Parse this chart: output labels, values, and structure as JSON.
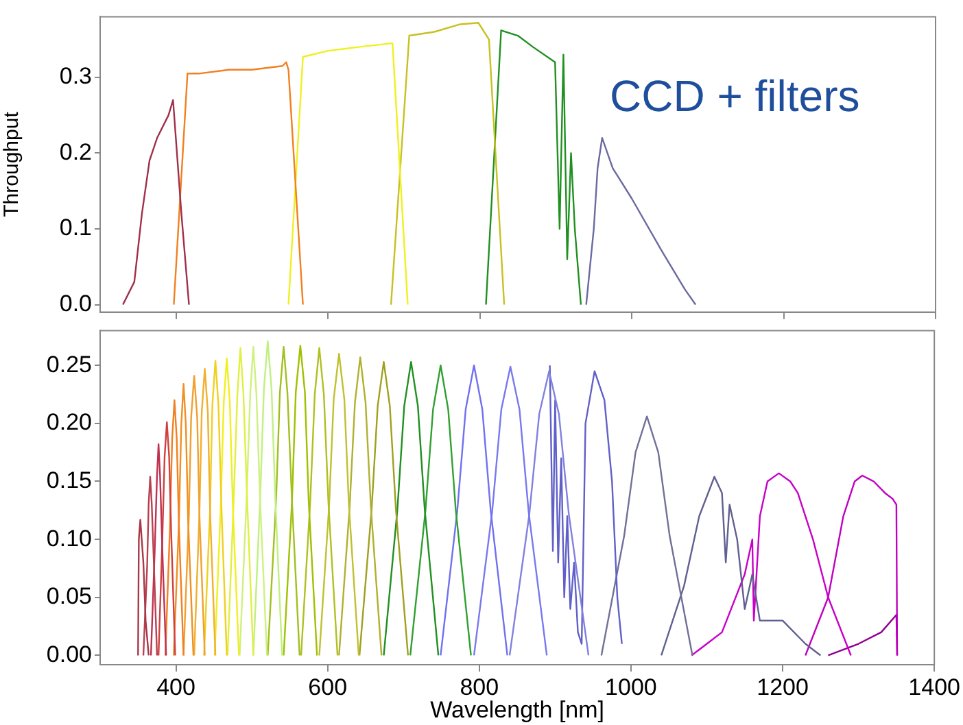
{
  "chart_data": [
    {
      "type": "line",
      "ylabel": "Throughput",
      "annotations": [
        "CCD + filters"
      ],
      "xlim": [
        300,
        1400
      ],
      "ylim": [
        -0.01,
        0.38
      ],
      "xticks": [
        400,
        600,
        800,
        1000,
        1200,
        1400
      ],
      "yticks": [
        {
          "value": 0,
          "label": "0.0"
        },
        {
          "value": 0.1,
          "label": "0.1"
        },
        {
          "value": 0.2,
          "label": "0.2"
        },
        {
          "value": 0.3,
          "label": "0.3"
        }
      ],
      "tick_labels": "y",
      "grid": false,
      "marker": "none",
      "series": [
        {
          "color": "#a0304a",
          "x": [
            330,
            345,
            355,
            365,
            375,
            390,
            396,
            407,
            417
          ],
          "values": [
            0,
            0.03,
            0.12,
            0.19,
            0.22,
            0.25,
            0.27,
            0.12,
            0
          ]
        },
        {
          "color": "#f08020",
          "x": [
            397,
            415,
            430,
            470,
            500,
            540,
            545,
            548,
            567
          ],
          "values": [
            0,
            0.305,
            0.305,
            0.31,
            0.31,
            0.315,
            0.32,
            0.31,
            0
          ]
        },
        {
          "color": "#f0f020",
          "x": [
            548,
            567,
            600,
            640,
            685,
            705
          ],
          "values": [
            0,
            0.327,
            0.335,
            0.34,
            0.345,
            0
          ]
        },
        {
          "color": "#c8c020",
          "x": [
            683,
            707,
            740,
            774,
            798,
            812,
            832
          ],
          "values": [
            0,
            0.355,
            0.36,
            0.37,
            0.372,
            0.35,
            0
          ]
        },
        {
          "color": "#209020",
          "x": [
            808,
            828,
            850,
            870,
            899,
            905,
            910,
            915,
            920,
            925,
            933
          ],
          "values": [
            0,
            0.362,
            0.355,
            0.34,
            0.32,
            0.1,
            0.33,
            0.06,
            0.2,
            0.1,
            0
          ]
        },
        {
          "color": "#6a6aa0",
          "x": [
            940,
            950,
            955,
            961,
            975,
            1000,
            1040,
            1070,
            1084
          ],
          "values": [
            0,
            0.1,
            0.18,
            0.22,
            0.18,
            0.14,
            0.07,
            0.02,
            0
          ]
        }
      ]
    },
    {
      "type": "line",
      "xlabel": "Wavelength [nm]",
      "xlim": [
        300,
        1400
      ],
      "ylim": [
        -0.008,
        0.28
      ],
      "xticks": [
        400,
        600,
        800,
        1000,
        1200,
        1400
      ],
      "yticks": [
        {
          "value": 0,
          "label": "0.00"
        },
        {
          "value": 0.05,
          "label": "0.05"
        },
        {
          "value": 0.1,
          "label": "0.10"
        },
        {
          "value": 0.15,
          "label": "0.15"
        },
        {
          "value": 0.2,
          "label": "0.20"
        },
        {
          "value": 0.25,
          "label": "0.25"
        }
      ],
      "grid": false,
      "marker": "none",
      "series": [
        {
          "color": "#a83848",
          "x": [
            350,
            351,
            353,
            357,
            360,
            364
          ],
          "values": [
            0,
            0.1,
            0.117,
            0.08,
            0.03,
            0
          ]
        },
        {
          "color": "#b84050",
          "x": [
            357,
            362,
            364,
            366,
            368,
            371,
            375
          ],
          "values": [
            0,
            0.077,
            0.131,
            0.154,
            0.131,
            0.077,
            0
          ]
        },
        {
          "color": "#c03050",
          "x": [
            367,
            372,
            375,
            377,
            379,
            382,
            387
          ],
          "values": [
            0,
            0.091,
            0.155,
            0.182,
            0.155,
            0.091,
            0
          ]
        },
        {
          "color": "#d04040",
          "x": [
            377,
            382,
            385,
            388,
            391,
            394,
            399
          ],
          "values": [
            0,
            0.1,
            0.171,
            0.201,
            0.171,
            0.1,
            0
          ]
        },
        {
          "color": "#f08020",
          "x": [
            386,
            392,
            395,
            398,
            401,
            404,
            410
          ],
          "values": [
            0,
            0.11,
            0.187,
            0.22,
            0.187,
            0.11,
            0
          ]
        },
        {
          "color": "#f09020",
          "x": [
            397,
            404,
            407,
            410,
            413,
            416,
            423
          ],
          "values": [
            0,
            0.117,
            0.199,
            0.234,
            0.199,
            0.117,
            0
          ]
        },
        {
          "color": "#f0a030",
          "x": [
            410,
            417,
            420,
            424,
            428,
            431,
            438
          ],
          "values": [
            0,
            0.12,
            0.205,
            0.241,
            0.205,
            0.12,
            0
          ]
        },
        {
          "color": "#f0b030",
          "x": [
            424,
            431,
            434,
            438,
            442,
            445,
            452
          ],
          "values": [
            0,
            0.124,
            0.21,
            0.247,
            0.21,
            0.124,
            0
          ]
        },
        {
          "color": "#f0d020",
          "x": [
            437,
            445,
            448,
            452,
            456,
            460,
            467
          ],
          "values": [
            0,
            0.127,
            0.216,
            0.254,
            0.216,
            0.127,
            0
          ]
        },
        {
          "color": "#f0f020",
          "x": [
            451,
            459,
            463,
            467,
            471,
            475,
            483
          ],
          "values": [
            0,
            0.128,
            0.218,
            0.256,
            0.218,
            0.128,
            0
          ]
        },
        {
          "color": "#e0f040",
          "x": [
            468,
            476,
            481,
            485,
            489,
            494,
            502
          ],
          "values": [
            0,
            0.132,
            0.225,
            0.265,
            0.225,
            0.132,
            0
          ]
        },
        {
          "color": "#d0f080",
          "x": [
            484,
            493,
            498,
            502,
            506,
            511,
            520
          ],
          "values": [
            0,
            0.133,
            0.226,
            0.266,
            0.226,
            0.133,
            0
          ]
        },
        {
          "color": "#c0f080",
          "x": [
            502,
            511,
            516,
            521,
            526,
            531,
            540
          ],
          "values": [
            0,
            0.135,
            0.23,
            0.271,
            0.23,
            0.135,
            0
          ]
        },
        {
          "color": "#a0c020",
          "x": [
            521,
            532,
            537,
            542,
            547,
            553,
            563
          ],
          "values": [
            0,
            0.133,
            0.226,
            0.266,
            0.226,
            0.133,
            0
          ]
        },
        {
          "color": "#a0c000",
          "x": [
            542,
            553,
            558,
            564,
            570,
            575,
            586
          ],
          "values": [
            0,
            0.133,
            0.227,
            0.267,
            0.227,
            0.133,
            0
          ]
        },
        {
          "color": "#b0c020",
          "x": [
            565,
            577,
            583,
            589,
            595,
            601,
            613
          ],
          "values": [
            0,
            0.132,
            0.225,
            0.265,
            0.225,
            0.132,
            0
          ]
        },
        {
          "color": "#c0c030",
          "x": [
            589,
            602,
            608,
            615,
            622,
            628,
            641
          ],
          "values": [
            0,
            0.13,
            0.221,
            0.26,
            0.221,
            0.13,
            0
          ]
        },
        {
          "color": "#b0b030",
          "x": [
            615,
            629,
            636,
            643,
            650,
            657,
            671
          ],
          "values": [
            0,
            0.128,
            0.218,
            0.257,
            0.218,
            0.128,
            0
          ]
        },
        {
          "color": "#a0a020",
          "x": [
            642,
            658,
            666,
            674,
            682,
            690,
            706
          ],
          "values": [
            0,
            0.126,
            0.215,
            0.253,
            0.215,
            0.126,
            0
          ]
        },
        {
          "color": "#209020",
          "x": [
            674,
            692,
            701,
            710,
            719,
            728,
            746
          ],
          "values": [
            0,
            0.126,
            0.215,
            0.253,
            0.215,
            0.126,
            0
          ]
        },
        {
          "color": "#30a030",
          "x": [
            709,
            729,
            739,
            749,
            759,
            769,
            789
          ],
          "values": [
            0,
            0.125,
            0.212,
            0.25,
            0.212,
            0.125,
            0
          ]
        },
        {
          "color": "#7070f0",
          "x": [
            749,
            771,
            782,
            793,
            804,
            815,
            837
          ],
          "values": [
            0,
            0.125,
            0.212,
            0.25,
            0.212,
            0.125,
            0
          ]
        },
        {
          "color": "#7878f0",
          "x": [
            793,
            817,
            829,
            841,
            853,
            865,
            889
          ],
          "values": [
            0,
            0.124,
            0.212,
            0.249,
            0.212,
            0.124,
            0
          ]
        },
        {
          "color": "#8080e0",
          "x": [
            840,
            866,
            879,
            892,
            905,
            918,
            944
          ],
          "values": [
            0,
            0.122,
            0.208,
            0.245,
            0.208,
            0.122,
            0
          ]
        },
        {
          "color": "#6060c8",
          "x": [
            893,
            897,
            900,
            904,
            908,
            912,
            916,
            920,
            925,
            930,
            935,
            940,
            952,
            965,
            975,
            982,
            988
          ],
          "values": [
            0.25,
            0.09,
            0.22,
            0.08,
            0.17,
            0.05,
            0.12,
            0.04,
            0.08,
            0.02,
            0.01,
            0.2,
            0.245,
            0.22,
            0.15,
            0.05,
            0.01
          ]
        },
        {
          "color": "#707098",
          "x": [
            961,
            991,
            1006,
            1021,
            1036,
            1051,
            1081
          ],
          "values": [
            0,
            0.103,
            0.175,
            0.206,
            0.175,
            0.103,
            0
          ]
        },
        {
          "color": "#606090",
          "x": [
            1040,
            1070,
            1090,
            1110,
            1120,
            1125,
            1130,
            1140,
            1150,
            1160,
            1170,
            1180,
            1200,
            1230,
            1250
          ],
          "values": [
            0,
            0.06,
            0.12,
            0.154,
            0.14,
            0.08,
            0.13,
            0.1,
            0.04,
            0.07,
            0.03,
            0.03,
            0.03,
            0.01,
            0
          ]
        },
        {
          "color": "#c800c8",
          "x": [
            1080,
            1120,
            1150,
            1160,
            1162,
            1170,
            1180,
            1195,
            1210,
            1220,
            1240,
            1260,
            1290
          ],
          "values": [
            0,
            0.02,
            0.07,
            0.1,
            0.03,
            0.12,
            0.15,
            0.157,
            0.15,
            0.14,
            0.1,
            0.05,
            0
          ]
        },
        {
          "color": "#c000c0",
          "x": [
            1230,
            1260,
            1280,
            1295,
            1305,
            1320,
            1335,
            1345,
            1350,
            1351
          ],
          "values": [
            0,
            0.05,
            0.12,
            0.15,
            0.155,
            0.15,
            0.14,
            0.135,
            0.13,
            0
          ]
        },
        {
          "color": "#900090",
          "x": [
            1260,
            1300,
            1330,
            1350,
            1351
          ],
          "values": [
            0,
            0.01,
            0.02,
            0.035,
            0
          ]
        }
      ]
    }
  ]
}
